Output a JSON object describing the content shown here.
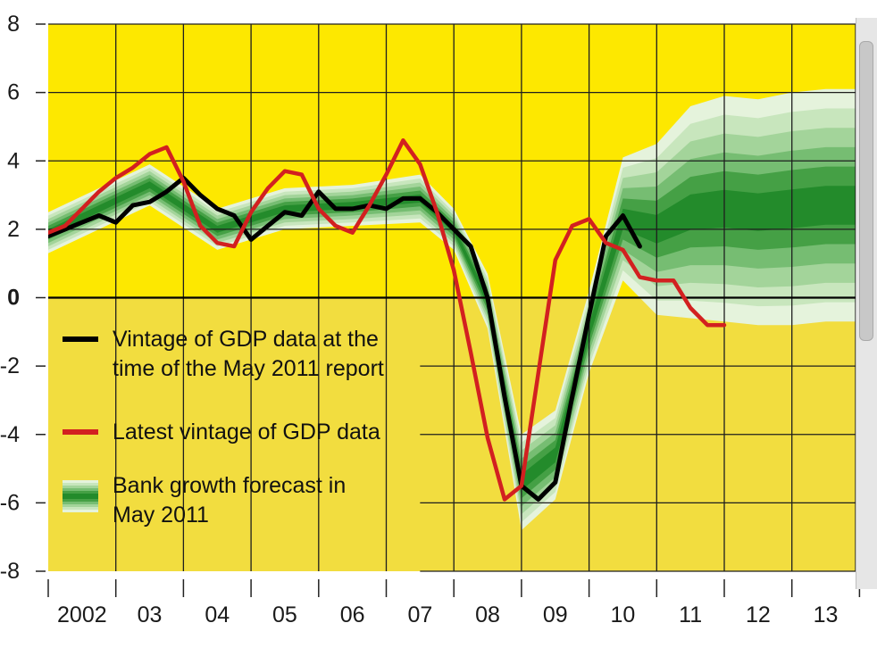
{
  "chart_data": {
    "type": "line",
    "title": "",
    "xlabel": "",
    "ylabel": "",
    "ylim": [
      -8,
      8
    ],
    "yticks": [
      8,
      6,
      4,
      2,
      0,
      -2,
      -4,
      -6,
      -8
    ],
    "ytick_labels": [
      "8",
      "6",
      "4",
      "2",
      "0",
      "-2",
      "-4",
      "-6",
      "-8"
    ],
    "xlim": [
      2002,
      2014.3
    ],
    "xtick_labels": [
      {
        "label": "2002",
        "year": 2002
      },
      {
        "label": "03",
        "year": 2003
      },
      {
        "label": "04",
        "year": 2004
      },
      {
        "label": "05",
        "year": 2005
      },
      {
        "label": "06",
        "year": 2006
      },
      {
        "label": "07",
        "year": 2007
      },
      {
        "label": "08",
        "year": 2008
      },
      {
        "label": "09",
        "year": 2009
      },
      {
        "label": "10",
        "year": 2010
      },
      {
        "label": "11",
        "year": 2011
      },
      {
        "label": "12",
        "year": 2012
      },
      {
        "label": "13",
        "year": 2013
      }
    ],
    "grid": true,
    "legend_position": "bottom-left",
    "series": [
      {
        "name": "Vintage of GDP data at the time of the May 2011 report",
        "color": "#000000",
        "x": [
          2002.0,
          2002.25,
          2002.5,
          2002.75,
          2003.0,
          2003.25,
          2003.5,
          2003.75,
          2004.0,
          2004.25,
          2004.5,
          2004.75,
          2005.0,
          2005.25,
          2005.5,
          2005.75,
          2006.0,
          2006.25,
          2006.5,
          2006.75,
          2007.0,
          2007.25,
          2007.5,
          2007.75,
          2008.0,
          2008.25,
          2008.5,
          2008.75,
          2009.0,
          2009.25,
          2009.5,
          2009.75,
          2010.0,
          2010.25,
          2010.5,
          2010.75
        ],
        "y": [
          1.8,
          2.0,
          2.2,
          2.4,
          2.2,
          2.7,
          2.8,
          3.1,
          3.5,
          3.0,
          2.6,
          2.4,
          1.7,
          2.1,
          2.5,
          2.4,
          3.1,
          2.6,
          2.6,
          2.7,
          2.6,
          2.9,
          2.9,
          2.5,
          2.0,
          1.5,
          0.0,
          -2.9,
          -5.5,
          -5.9,
          -5.4,
          -2.9,
          -0.5,
          1.8,
          2.4,
          1.5
        ]
      },
      {
        "name": "Latest vintage of GDP data",
        "color": "#d22020",
        "x": [
          2002.0,
          2002.25,
          2002.5,
          2002.75,
          2003.0,
          2003.25,
          2003.5,
          2003.75,
          2004.0,
          2004.25,
          2004.5,
          2004.75,
          2005.0,
          2005.25,
          2005.5,
          2005.75,
          2006.0,
          2006.25,
          2006.5,
          2006.75,
          2007.0,
          2007.25,
          2007.5,
          2007.75,
          2008.0,
          2008.25,
          2008.5,
          2008.75,
          2009.0,
          2009.25,
          2009.5,
          2009.75,
          2010.0,
          2010.25,
          2010.5,
          2010.75,
          2011.0,
          2011.25,
          2011.5,
          2011.75,
          2012.0
        ],
        "y": [
          1.9,
          2.1,
          2.6,
          3.1,
          3.5,
          3.8,
          4.2,
          4.4,
          3.4,
          2.1,
          1.6,
          1.5,
          2.5,
          3.2,
          3.7,
          3.6,
          2.6,
          2.1,
          1.9,
          2.7,
          3.6,
          4.6,
          3.9,
          2.5,
          0.8,
          -1.6,
          -4.1,
          -5.9,
          -5.5,
          -2.2,
          1.1,
          2.1,
          2.3,
          1.6,
          1.4,
          0.6,
          0.5,
          0.5,
          -0.3,
          -0.8,
          -0.8
        ]
      }
    ],
    "fan_chart": {
      "name": "Bank growth forecast in May 2011",
      "colors": [
        "#e5f3dc",
        "#c8e6bd",
        "#a3d49a",
        "#76bd72",
        "#45a045",
        "#238b2b"
      ],
      "x": [
        2002.0,
        2003.5,
        2004.5,
        2005.5,
        2006.5,
        2007.5,
        2008.0,
        2008.5,
        2009.0,
        2009.5,
        2010.0,
        2010.5,
        2011.0,
        2011.5,
        2012.0,
        2012.5,
        2013.0,
        2013.5,
        2014.3
      ],
      "center": [
        1.9,
        3.3,
        2.0,
        2.6,
        2.7,
        2.9,
        2.0,
        -0.1,
        -5.4,
        -4.6,
        -1.0,
        2.3,
        2.0,
        2.5,
        2.6,
        2.5,
        2.6,
        2.7,
        2.7
      ],
      "spread": [
        0.6,
        0.6,
        0.6,
        0.6,
        0.6,
        0.7,
        0.6,
        0.8,
        1.4,
        1.3,
        1.2,
        1.8,
        2.5,
        3.1,
        3.3,
        3.3,
        3.4,
        3.4,
        3.4
      ]
    },
    "legend": [
      {
        "type": "line",
        "color": "#000000",
        "lines": [
          "Vintage of GDP data at the",
          "time of the May 2011 report"
        ]
      },
      {
        "type": "line",
        "color": "#d22020",
        "lines": [
          "Latest vintage of GDP data"
        ]
      },
      {
        "type": "fan",
        "lines": [
          "Bank growth forecast in",
          "May 2011"
        ]
      }
    ],
    "colors": {
      "plot_upper_bg": "#fde800",
      "plot_lower_bg": "#f2dd3f",
      "grid": "#1e1e1e",
      "zero_line": "#000000"
    }
  }
}
